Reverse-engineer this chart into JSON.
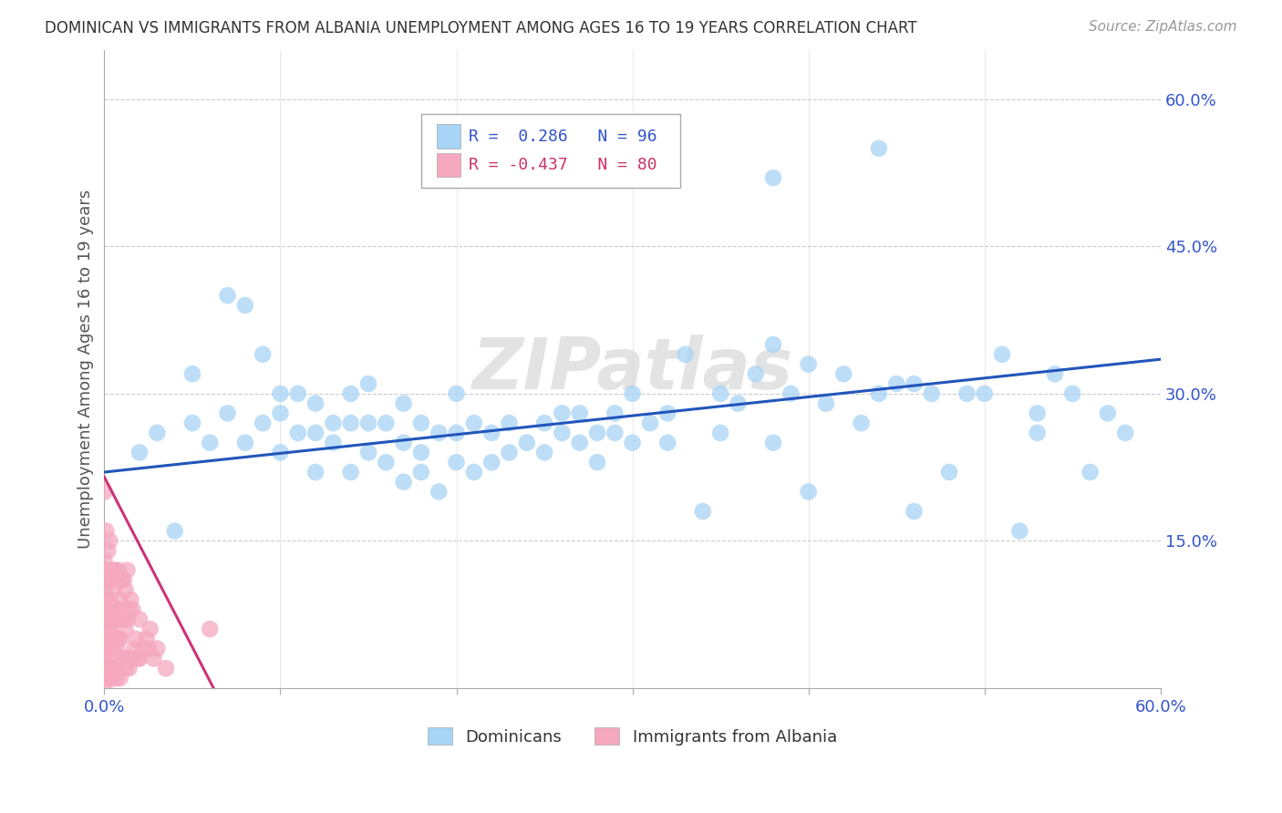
{
  "title": "DOMINICAN VS IMMIGRANTS FROM ALBANIA UNEMPLOYMENT AMONG AGES 16 TO 19 YEARS CORRELATION CHART",
  "source": "Source: ZipAtlas.com",
  "ylabel": "Unemployment Among Ages 16 to 19 years",
  "xlim": [
    0.0,
    0.6
  ],
  "ylim": [
    0.0,
    0.65
  ],
  "dominicans_R": 0.286,
  "dominicans_N": 96,
  "albania_R": -0.437,
  "albania_N": 80,
  "blue_color": "#A8D4F5",
  "pink_color": "#F5A8C0",
  "blue_line_color": "#2255BB",
  "pink_line_color": "#CC3377",
  "watermark": "ZIPatlas",
  "blue_x": [
    0.02,
    0.03,
    0.04,
    0.05,
    0.05,
    0.06,
    0.07,
    0.07,
    0.08,
    0.08,
    0.09,
    0.09,
    0.1,
    0.1,
    0.1,
    0.11,
    0.11,
    0.12,
    0.12,
    0.12,
    0.13,
    0.13,
    0.14,
    0.14,
    0.14,
    0.15,
    0.15,
    0.15,
    0.16,
    0.16,
    0.17,
    0.17,
    0.17,
    0.18,
    0.18,
    0.18,
    0.19,
    0.19,
    0.2,
    0.2,
    0.2,
    0.21,
    0.21,
    0.22,
    0.22,
    0.23,
    0.23,
    0.24,
    0.25,
    0.25,
    0.26,
    0.26,
    0.27,
    0.27,
    0.28,
    0.28,
    0.29,
    0.29,
    0.3,
    0.3,
    0.31,
    0.32,
    0.32,
    0.33,
    0.34,
    0.35,
    0.35,
    0.36,
    0.37,
    0.38,
    0.38,
    0.39,
    0.4,
    0.4,
    0.41,
    0.42,
    0.43,
    0.44,
    0.45,
    0.46,
    0.46,
    0.47,
    0.48,
    0.49,
    0.5,
    0.51,
    0.52,
    0.53,
    0.53,
    0.54,
    0.55,
    0.56,
    0.57,
    0.58,
    0.38,
    0.44
  ],
  "blue_y": [
    0.24,
    0.26,
    0.16,
    0.27,
    0.32,
    0.25,
    0.4,
    0.28,
    0.25,
    0.39,
    0.27,
    0.34,
    0.24,
    0.28,
    0.3,
    0.26,
    0.3,
    0.22,
    0.26,
    0.29,
    0.25,
    0.27,
    0.22,
    0.27,
    0.3,
    0.24,
    0.27,
    0.31,
    0.23,
    0.27,
    0.21,
    0.25,
    0.29,
    0.22,
    0.24,
    0.27,
    0.2,
    0.26,
    0.23,
    0.26,
    0.3,
    0.22,
    0.27,
    0.23,
    0.26,
    0.24,
    0.27,
    0.25,
    0.24,
    0.27,
    0.26,
    0.28,
    0.25,
    0.28,
    0.23,
    0.26,
    0.26,
    0.28,
    0.25,
    0.3,
    0.27,
    0.28,
    0.25,
    0.34,
    0.18,
    0.26,
    0.3,
    0.29,
    0.32,
    0.25,
    0.35,
    0.3,
    0.2,
    0.33,
    0.29,
    0.32,
    0.27,
    0.3,
    0.31,
    0.18,
    0.31,
    0.3,
    0.22,
    0.3,
    0.3,
    0.34,
    0.16,
    0.26,
    0.28,
    0.32,
    0.3,
    0.22,
    0.28,
    0.26,
    0.52,
    0.55
  ],
  "pink_x": [
    0.0,
    0.0,
    0.0,
    0.0,
    0.0,
    0.0,
    0.0,
    0.0,
    0.001,
    0.001,
    0.001,
    0.001,
    0.001,
    0.001,
    0.002,
    0.002,
    0.002,
    0.002,
    0.002,
    0.002,
    0.003,
    0.003,
    0.003,
    0.003,
    0.003,
    0.003,
    0.004,
    0.004,
    0.004,
    0.004,
    0.005,
    0.005,
    0.005,
    0.005,
    0.006,
    0.006,
    0.006,
    0.006,
    0.007,
    0.007,
    0.007,
    0.007,
    0.008,
    0.008,
    0.008,
    0.008,
    0.009,
    0.009,
    0.009,
    0.01,
    0.01,
    0.01,
    0.011,
    0.011,
    0.011,
    0.012,
    0.012,
    0.012,
    0.013,
    0.013,
    0.013,
    0.014,
    0.014,
    0.015,
    0.015,
    0.016,
    0.016,
    0.017,
    0.018,
    0.019,
    0.02,
    0.02,
    0.022,
    0.024,
    0.025,
    0.026,
    0.028,
    0.03,
    0.035,
    0.06
  ],
  "pink_y": [
    0.0,
    0.01,
    0.03,
    0.05,
    0.07,
    0.1,
    0.13,
    0.2,
    0.02,
    0.04,
    0.07,
    0.09,
    0.12,
    0.16,
    0.01,
    0.03,
    0.06,
    0.08,
    0.11,
    0.14,
    0.01,
    0.04,
    0.06,
    0.09,
    0.11,
    0.15,
    0.02,
    0.05,
    0.08,
    0.12,
    0.01,
    0.04,
    0.07,
    0.1,
    0.02,
    0.05,
    0.08,
    0.12,
    0.01,
    0.04,
    0.07,
    0.11,
    0.02,
    0.05,
    0.08,
    0.12,
    0.01,
    0.05,
    0.09,
    0.03,
    0.07,
    0.11,
    0.03,
    0.07,
    0.11,
    0.02,
    0.06,
    0.1,
    0.03,
    0.07,
    0.12,
    0.02,
    0.08,
    0.03,
    0.09,
    0.03,
    0.08,
    0.04,
    0.05,
    0.03,
    0.03,
    0.07,
    0.04,
    0.05,
    0.04,
    0.06,
    0.03,
    0.04,
    0.02,
    0.06
  ],
  "blue_line_x0": 0.0,
  "blue_line_x1": 0.6,
  "blue_line_y0": 0.22,
  "blue_line_y1": 0.335,
  "pink_line_x0": 0.0,
  "pink_line_x1": 0.062,
  "pink_line_y0": 0.215,
  "pink_line_y1": 0.0
}
